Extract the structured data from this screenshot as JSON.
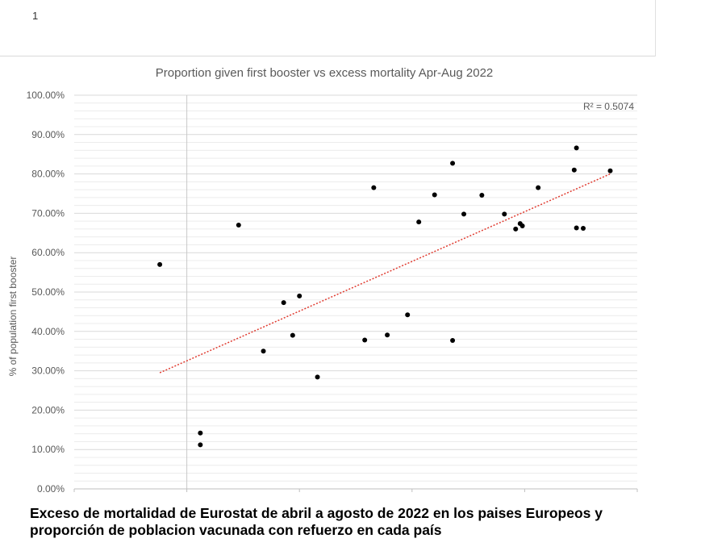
{
  "spreadsheet_fragment": {
    "row_label": "1"
  },
  "caption": {
    "line1": "Exceso de mortalidad de Eurostat de abril a agosto de 2022 en los paises Europeos y",
    "line2": "proporción de poblacion vacunada con refuerzo en cada país"
  },
  "chart_data": {
    "type": "scatter",
    "title": "Proportion given first booster vs excess mortality Apr-Aug 2022",
    "ylabel": "% of population first booster",
    "xlabel": "",
    "xlim": [
      -5,
      20
    ],
    "ylim": [
      0,
      100
    ],
    "y_ticks": [
      "0.00%",
      "10.00%",
      "20.00%",
      "30.00%",
      "40.00%",
      "50.00%",
      "60.00%",
      "70.00%",
      "80.00%",
      "90.00%",
      "100.00%"
    ],
    "grid": true,
    "r_squared_label": "R² = 0.5074",
    "trendline": {
      "type": "linear",
      "from": [
        -1.2,
        29.5
      ],
      "to": [
        18.8,
        80.0
      ],
      "color": "#e03c31"
    },
    "point_color": "#000000",
    "points": [
      {
        "x": -1.2,
        "y": 57.0
      },
      {
        "x": 0.6,
        "y": 14.2
      },
      {
        "x": 0.6,
        "y": 11.2
      },
      {
        "x": 2.3,
        "y": 67.0
      },
      {
        "x": 3.4,
        "y": 35.0
      },
      {
        "x": 4.3,
        "y": 47.3
      },
      {
        "x": 4.7,
        "y": 39.0
      },
      {
        "x": 5.0,
        "y": 49.0
      },
      {
        "x": 5.8,
        "y": 28.4
      },
      {
        "x": 7.9,
        "y": 37.8
      },
      {
        "x": 8.3,
        "y": 76.5
      },
      {
        "x": 8.9,
        "y": 39.1
      },
      {
        "x": 9.8,
        "y": 44.2
      },
      {
        "x": 10.3,
        "y": 67.8
      },
      {
        "x": 11.0,
        "y": 74.7
      },
      {
        "x": 11.8,
        "y": 82.7
      },
      {
        "x": 11.8,
        "y": 37.7
      },
      {
        "x": 12.3,
        "y": 69.8
      },
      {
        "x": 13.1,
        "y": 74.6
      },
      {
        "x": 14.1,
        "y": 69.8
      },
      {
        "x": 14.6,
        "y": 66.0
      },
      {
        "x": 14.8,
        "y": 67.4
      },
      {
        "x": 14.9,
        "y": 66.8
      },
      {
        "x": 15.6,
        "y": 76.5
      },
      {
        "x": 17.2,
        "y": 81.0
      },
      {
        "x": 17.3,
        "y": 86.6
      },
      {
        "x": 17.3,
        "y": 66.3
      },
      {
        "x": 17.6,
        "y": 66.2
      },
      {
        "x": 18.8,
        "y": 80.8
      }
    ]
  }
}
